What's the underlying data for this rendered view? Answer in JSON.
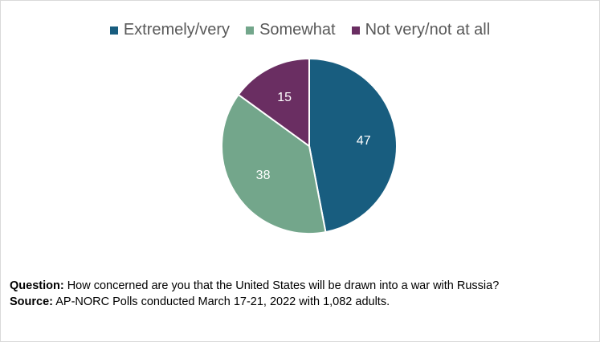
{
  "chart_data": {
    "type": "pie",
    "title": "",
    "slices": [
      {
        "label": "Extremely/very",
        "value": 47,
        "color": "#185d7f"
      },
      {
        "label": "Somewhat",
        "value": 38,
        "color": "#73a68b"
      },
      {
        "label": "Not very/not at all",
        "value": 15,
        "color": "#6a2e62"
      }
    ],
    "legend_position": "top"
  },
  "notes": {
    "question_label": "Question:",
    "question_text": "How concerned are you that the United States will be drawn into a war with Russia?",
    "source_label": "Source:",
    "source_text": "AP-NORC Polls conducted March 17-21, 2022 with 1,082 adults."
  }
}
